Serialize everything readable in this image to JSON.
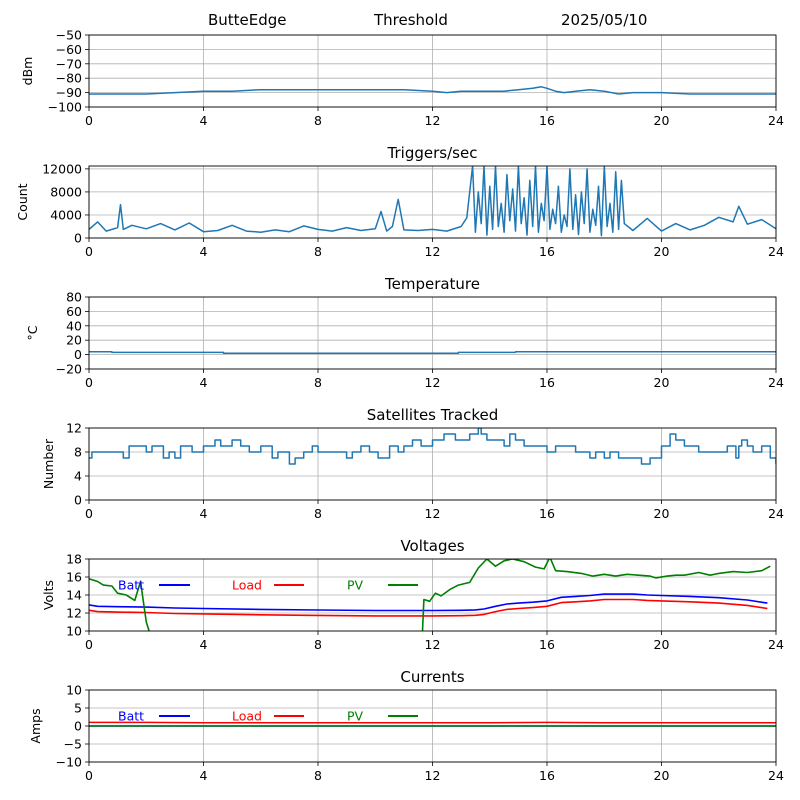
{
  "header": {
    "station": "ButteEdge",
    "mode": "Threshold",
    "date": "2025/05/10"
  },
  "legend_colors": {
    "Batt": "#0000ff",
    "Load": "#ff0000",
    "PV": "#008000"
  },
  "chart_data": [
    {
      "id": "noise",
      "type": "line",
      "title": "",
      "xlabel": "",
      "ylabel": "dBm",
      "xlim": [
        0,
        24
      ],
      "ylim": [
        -100,
        -50
      ],
      "xticks": [
        0,
        4,
        8,
        12,
        16,
        20,
        24
      ],
      "yticks": [
        -100,
        -90,
        -80,
        -70,
        -60,
        -50
      ],
      "grid": true,
      "series": [
        {
          "color": "#1f77b4",
          "x": [
            0,
            1,
            2,
            3,
            4,
            5,
            6,
            7,
            8,
            9,
            10,
            11,
            12,
            12.5,
            13,
            13.5,
            14,
            14.5,
            15,
            15.5,
            15.8,
            16,
            16.3,
            16.6,
            17,
            17.5,
            18,
            18.5,
            19,
            20,
            21,
            22,
            23,
            24
          ],
          "y": [
            -91,
            -91,
            -91,
            -90,
            -89,
            -89,
            -88,
            -88,
            -88,
            -88,
            -88,
            -88,
            -89,
            -90,
            -89,
            -89,
            -89,
            -89,
            -88,
            -87,
            -86,
            -87,
            -89,
            -90,
            -89,
            -88,
            -89,
            -91,
            -90,
            -90,
            -91,
            -91,
            -91,
            -91
          ]
        }
      ]
    },
    {
      "id": "triggers",
      "type": "line",
      "title": "Triggers/sec",
      "xlabel": "",
      "ylabel": "Count",
      "xlim": [
        0,
        24
      ],
      "ylim": [
        0,
        12500
      ],
      "xticks": [
        0,
        4,
        8,
        12,
        16,
        20,
        24
      ],
      "yticks": [
        0,
        4000,
        8000,
        12000
      ],
      "grid": true,
      "series": [
        {
          "color": "#1f77b4",
          "x": [
            0,
            0.3,
            0.6,
            1,
            1.1,
            1.2,
            1.5,
            2,
            2.5,
            3,
            3.5,
            4,
            4.5,
            5,
            5.5,
            6,
            6.5,
            7,
            7.5,
            8,
            8.5,
            9,
            9.5,
            10,
            10.2,
            10.4,
            10.6,
            10.8,
            11,
            11.5,
            12,
            12.5,
            13,
            13.2,
            13.4,
            13.5,
            13.6,
            13.7,
            13.8,
            13.9,
            14,
            14.1,
            14.2,
            14.3,
            14.4,
            14.5,
            14.6,
            14.7,
            14.8,
            14.9,
            15,
            15.1,
            15.2,
            15.3,
            15.4,
            15.5,
            15.6,
            15.7,
            15.8,
            15.9,
            16,
            16.1,
            16.2,
            16.3,
            16.4,
            16.5,
            16.6,
            16.7,
            16.8,
            16.9,
            17,
            17.1,
            17.2,
            17.3,
            17.4,
            17.5,
            17.6,
            17.7,
            17.8,
            17.9,
            18,
            18.1,
            18.2,
            18.3,
            18.4,
            18.5,
            18.6,
            18.7,
            19,
            19.5,
            20,
            20.5,
            21,
            21.5,
            22,
            22.5,
            22.7,
            23,
            23.5,
            24
          ],
          "y": [
            1500,
            2800,
            1200,
            1800,
            5800,
            1500,
            2200,
            1600,
            2500,
            1400,
            2600,
            1100,
            1300,
            2200,
            1200,
            1000,
            1400,
            1100,
            2100,
            1500,
            1200,
            1800,
            1300,
            1600,
            4600,
            1200,
            2000,
            6700,
            1400,
            1300,
            1500,
            1200,
            2000,
            3500,
            12500,
            1000,
            8000,
            2500,
            12500,
            500,
            9000,
            1500,
            12500,
            2000,
            6000,
            1000,
            11000,
            3000,
            8500,
            1200,
            12500,
            2500,
            7000,
            500,
            10000,
            2000,
            12500,
            1000,
            6000,
            3000,
            12500,
            1500,
            5000,
            2500,
            9000,
            1000,
            4000,
            2000,
            12000,
            1500,
            7500,
            600,
            8000,
            2500,
            12000,
            1000,
            5000,
            2200,
            9000,
            400,
            12500,
            2000,
            6000,
            1000,
            11500,
            1500,
            10000,
            2500,
            1300,
            3400,
            1200,
            2500,
            1400,
            2200,
            3600,
            2800,
            5500,
            2400,
            3200,
            1600
          ]
        }
      ]
    },
    {
      "id": "temperature",
      "type": "line",
      "title": "Temperature",
      "xlabel": "",
      "ylabel": "°C",
      "xlim": [
        0,
        24
      ],
      "ylim": [
        -20,
        80
      ],
      "xticks": [
        0,
        4,
        8,
        12,
        16,
        20,
        24
      ],
      "yticks": [
        -20,
        0,
        20,
        40,
        60,
        80
      ],
      "grid": true,
      "series": [
        {
          "color": "#1f77b4",
          "x": [
            0,
            0.8,
            0.8,
            4.7,
            4.7,
            12.9,
            12.9,
            14.9,
            14.9,
            24
          ],
          "y": [
            4,
            4,
            3,
            3,
            2,
            2,
            3,
            3,
            4,
            4
          ]
        }
      ]
    },
    {
      "id": "satellites",
      "type": "line",
      "title": "Satellites Tracked",
      "xlabel": "",
      "ylabel": "Number",
      "xlim": [
        0,
        24
      ],
      "ylim": [
        0,
        12
      ],
      "xticks": [
        0,
        4,
        8,
        12,
        16,
        20,
        24
      ],
      "yticks": [
        0,
        4,
        8,
        12
      ],
      "grid": true,
      "series": [
        {
          "color": "#1f77b4",
          "step": true,
          "x": [
            0,
            0.1,
            1.1,
            1.2,
            1.4,
            2,
            2.2,
            2.6,
            2.8,
            3,
            3.2,
            3.6,
            4,
            4.4,
            4.6,
            5,
            5.3,
            5.6,
            6,
            6.4,
            6.6,
            7,
            7.2,
            7.5,
            7.8,
            8,
            8.5,
            9,
            9.2,
            9.5,
            9.8,
            10.1,
            10.5,
            10.8,
            11,
            11.3,
            11.6,
            12,
            12.4,
            12.8,
            13.3,
            13.6,
            13.7,
            13.9,
            14.1,
            14.5,
            14.7,
            14.9,
            15.2,
            16,
            16.3,
            16.6,
            17,
            17.3,
            17.5,
            17.7,
            18,
            18.2,
            18.5,
            19,
            19.3,
            19.6,
            20,
            20.3,
            20.5,
            20.8,
            21,
            21.3,
            21.8,
            22,
            22.3,
            22.6,
            22.7,
            22.8,
            23,
            23.2,
            23.5,
            23.8,
            24
          ],
          "y": [
            7,
            8,
            8,
            7,
            9,
            8,
            9,
            7,
            8,
            7,
            9,
            8,
            9,
            10,
            9,
            10,
            9,
            8,
            9,
            7,
            8,
            6,
            7,
            8,
            9,
            8,
            8,
            7,
            8,
            9,
            8,
            7,
            9,
            8,
            9,
            10,
            9,
            10,
            11,
            10,
            11,
            12,
            11,
            10,
            10,
            9,
            11,
            10,
            9,
            8,
            9,
            9,
            8,
            8,
            7,
            8,
            7,
            8,
            7,
            7,
            6,
            7,
            9,
            11,
            10,
            9,
            9,
            8,
            8,
            8,
            9,
            7,
            9,
            10,
            9,
            8,
            9,
            7,
            6
          ]
        }
      ]
    },
    {
      "id": "voltages",
      "type": "line",
      "title": "Voltages",
      "xlabel": "",
      "ylabel": "Volts",
      "xlim": [
        0,
        24
      ],
      "ylim": [
        10,
        18
      ],
      "xticks": [
        0,
        4,
        8,
        12,
        16,
        20,
        24
      ],
      "yticks": [
        10,
        12,
        14,
        16,
        18
      ],
      "grid": true,
      "legend": [
        "Batt",
        "Load",
        "PV"
      ],
      "series": [
        {
          "name": "Batt",
          "color": "#0000ff",
          "x": [
            0,
            0.3,
            1,
            2,
            3,
            4,
            6,
            8,
            10,
            12,
            13,
            13.5,
            13.8,
            14.2,
            14.6,
            15,
            15.5,
            16,
            16.5,
            17,
            17.5,
            18,
            18.5,
            19,
            19.5,
            20,
            21,
            22,
            23,
            23.7
          ],
          "y": [
            12.9,
            12.75,
            12.7,
            12.65,
            12.55,
            12.5,
            12.4,
            12.33,
            12.28,
            12.28,
            12.3,
            12.35,
            12.45,
            12.75,
            13.0,
            13.1,
            13.2,
            13.35,
            13.75,
            13.85,
            13.95,
            14.1,
            14.1,
            14.1,
            14.0,
            13.95,
            13.85,
            13.7,
            13.45,
            13.1
          ]
        },
        {
          "name": "Load",
          "color": "#ff0000",
          "x": [
            0,
            0.3,
            1,
            2,
            3,
            4,
            6,
            8,
            10,
            12,
            13,
            13.5,
            13.8,
            14.2,
            14.6,
            15,
            15.5,
            16,
            16.5,
            17,
            17.5,
            18,
            18.5,
            19,
            19.5,
            20,
            21,
            22,
            23,
            23.7
          ],
          "y": [
            12.3,
            12.15,
            12.1,
            12.05,
            11.95,
            11.9,
            11.8,
            11.73,
            11.68,
            11.68,
            11.7,
            11.75,
            11.85,
            12.15,
            12.4,
            12.5,
            12.6,
            12.75,
            13.15,
            13.25,
            13.35,
            13.5,
            13.5,
            13.5,
            13.4,
            13.35,
            13.25,
            13.1,
            12.85,
            12.5
          ]
        },
        {
          "name": "PV",
          "color": "#008000",
          "x": [
            0,
            0.3,
            0.5,
            0.8,
            1.0,
            1.3,
            1.6,
            1.8,
            2.0,
            2.05,
            2.1
          ],
          "y": [
            15.8,
            15.5,
            15.1,
            15.0,
            14.2,
            14.0,
            13.4,
            15.5,
            11.0,
            10.5,
            10.0
          ]
        },
        {
          "name": "PV",
          "color": "#008000",
          "x": [
            11.65,
            11.7,
            11.9,
            12.1,
            12.3,
            12.6,
            12.9,
            13.3,
            13.6,
            13.9,
            14.2,
            14.5,
            14.8,
            15.2,
            15.6,
            15.9,
            16.1,
            16.3,
            16.7,
            17.2,
            17.6,
            18.0,
            18.4,
            18.8,
            19.2,
            19.6,
            19.8,
            20.2,
            20.5,
            20.8,
            21.3,
            21.7,
            22.0,
            22.5,
            23.0,
            23.5,
            23.8
          ],
          "y": [
            10.0,
            13.5,
            13.3,
            14.2,
            13.9,
            14.6,
            15.1,
            15.4,
            17.0,
            18.0,
            17.2,
            17.8,
            18.0,
            17.7,
            17.1,
            16.9,
            18.2,
            16.7,
            16.6,
            16.4,
            16.1,
            16.3,
            16.1,
            16.3,
            16.2,
            16.1,
            15.9,
            16.1,
            16.2,
            16.2,
            16.5,
            16.2,
            16.4,
            16.6,
            16.5,
            16.7,
            17.2
          ]
        }
      ]
    },
    {
      "id": "currents",
      "type": "line",
      "title": "Currents",
      "xlabel": "",
      "ylabel": "Amps",
      "xlim": [
        0,
        24
      ],
      "ylim": [
        -10,
        10
      ],
      "xticks": [
        0,
        4,
        8,
        12,
        16,
        20,
        24
      ],
      "yticks": [
        -10,
        -5,
        0,
        5,
        10
      ],
      "grid": true,
      "legend": [
        "Batt",
        "Load",
        "PV"
      ],
      "series": [
        {
          "name": "Batt",
          "color": "#0000ff",
          "x": [
            0,
            3,
            6,
            9,
            12,
            15,
            18,
            21,
            24
          ],
          "y": [
            0,
            0,
            0,
            0,
            0,
            0,
            0,
            0,
            0
          ]
        },
        {
          "name": "Load",
          "color": "#ff0000",
          "x": [
            0,
            2,
            4,
            6,
            8,
            10,
            12,
            14,
            16,
            18,
            20,
            22,
            24
          ],
          "y": [
            1.0,
            1.0,
            0.9,
            0.9,
            0.9,
            0.9,
            0.9,
            0.9,
            1.0,
            0.9,
            0.9,
            0.9,
            0.9
          ]
        },
        {
          "name": "PV",
          "color": "#008000",
          "x": [
            0,
            3,
            6,
            9,
            12,
            15,
            18,
            21,
            24
          ],
          "y": [
            0,
            0,
            0,
            0,
            0,
            0,
            0,
            0,
            0
          ]
        }
      ]
    }
  ]
}
